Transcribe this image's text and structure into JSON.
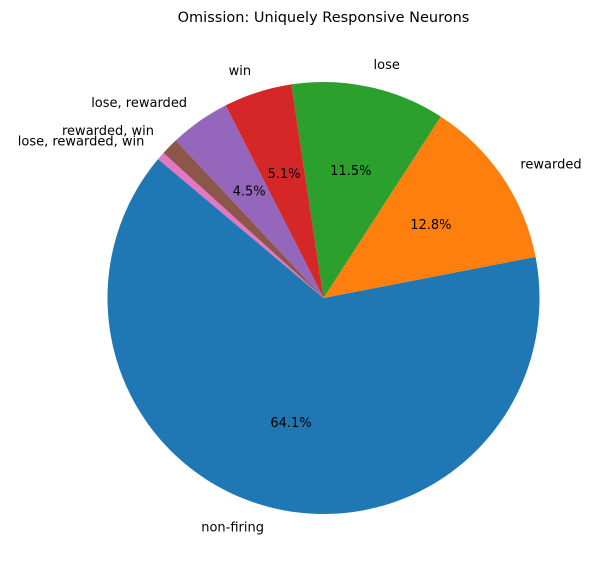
{
  "chart_data": {
    "type": "pie",
    "title": "Omission: Uniquely Responsive Neurons",
    "start_angle_deg": 140,
    "direction": "counterclockwise",
    "slices": [
      {
        "label": "non-firing",
        "value": 64.1,
        "pct_text": "64.1%",
        "color": "#1f77b4"
      },
      {
        "label": "rewarded",
        "value": 12.8,
        "pct_text": "12.8%",
        "color": "#ff7f0e"
      },
      {
        "label": "lose",
        "value": 11.5,
        "pct_text": "11.5%",
        "color": "#2ca02c"
      },
      {
        "label": "win",
        "value": 5.1,
        "pct_text": "5.1%",
        "color": "#d62728"
      },
      {
        "label": "lose, rewarded",
        "value": 4.5,
        "pct_text": "4.5%",
        "color": "#9467bd"
      },
      {
        "label": "rewarded, win",
        "value": 1.3,
        "pct_text": "",
        "color": "#8c564b"
      },
      {
        "label": "lose, rewarded, win",
        "value": 0.6,
        "pct_text": "",
        "color": "#e377c2"
      }
    ]
  }
}
